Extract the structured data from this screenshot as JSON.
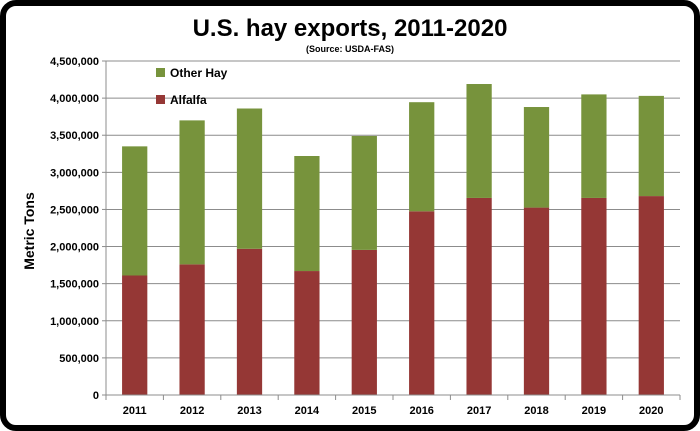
{
  "chart_data": {
    "type": "bar",
    "stacked": true,
    "title": "U.S. hay exports, 2011-2020",
    "subtitle": "(Source: USDA-FAS)",
    "xlabel": "",
    "ylabel": "Metric Tons",
    "categories": [
      "2011",
      "2012",
      "2013",
      "2014",
      "2015",
      "2016",
      "2017",
      "2018",
      "2019",
      "2020"
    ],
    "series": [
      {
        "name": "Alfalfa",
        "color": "#953735",
        "values": [
          1610000,
          1760000,
          1970000,
          1670000,
          1955000,
          2475000,
          2655000,
          2525000,
          2655000,
          2680000
        ]
      },
      {
        "name": "Other Hay",
        "color": "#77933C",
        "values": [
          1740000,
          1940000,
          1890000,
          1550000,
          1535000,
          1470000,
          1535000,
          1355000,
          1395000,
          1350000
        ]
      }
    ],
    "ylim": [
      0,
      4500000
    ],
    "yticks": [
      0,
      500000,
      1000000,
      1500000,
      2000000,
      2500000,
      3000000,
      3500000,
      4000000,
      4500000
    ],
    "ytick_labels": [
      "0",
      "500,000",
      "1,000,000",
      "1,500,000",
      "2,000,000",
      "2,500,000",
      "3,000,000",
      "3,500,000",
      "4,000,000",
      "4,500,000"
    ],
    "legend_order": [
      "Other Hay",
      "Alfalfa"
    ],
    "legend_position": "top-left",
    "grid": true
  }
}
